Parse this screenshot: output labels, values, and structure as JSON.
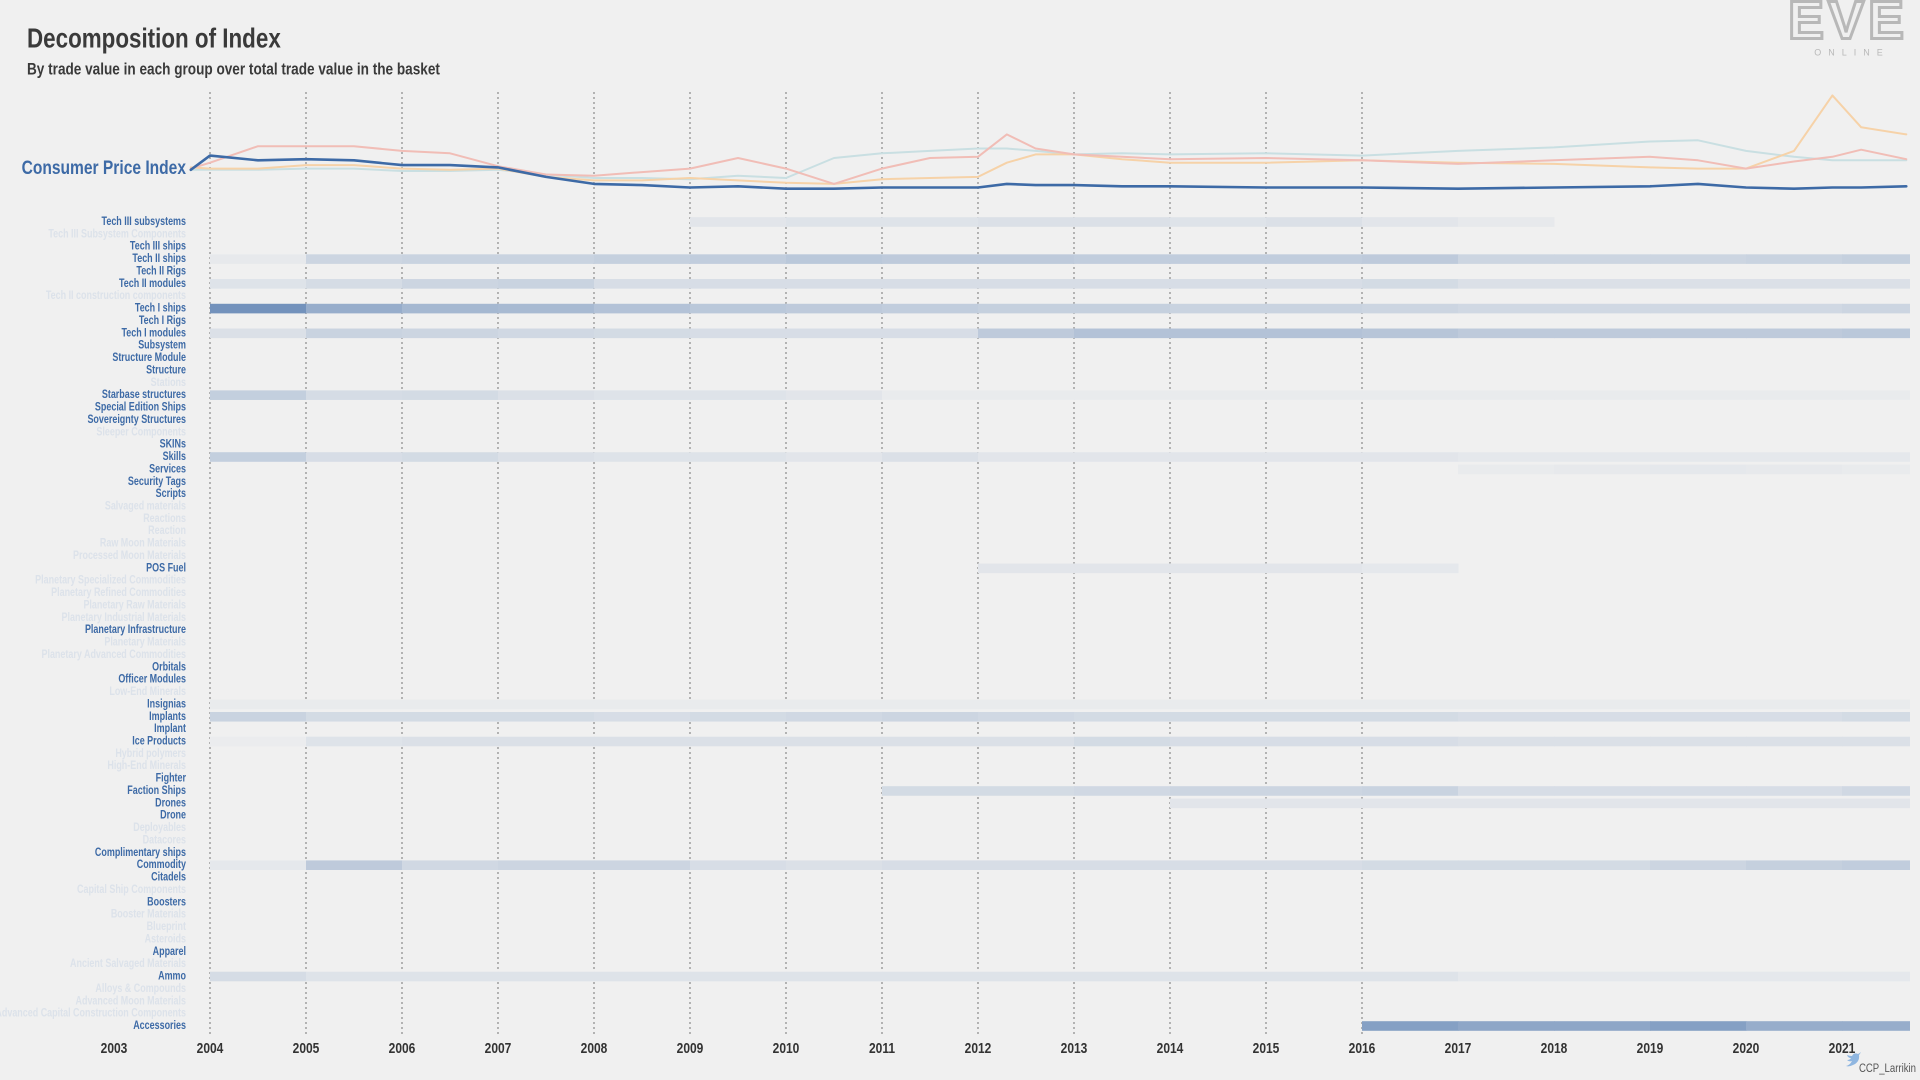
{
  "header": {
    "title": "Decomposition of Index",
    "subtitle": "By trade value in each group over total trade value in the basket",
    "logo": {
      "word": "EVE",
      "tagline": "ONLINE"
    },
    "credit": "CCP_Larrikin"
  },
  "chart_data": [
    {
      "type": "line",
      "label": "Consumer Price Index",
      "xlim": [
        2002.25,
        2021.75
      ],
      "ylim": [
        0.7,
        2.7
      ],
      "x": [
        2003.8,
        2004,
        2004.5,
        2005,
        2005.5,
        2006,
        2006.5,
        2007,
        2007.5,
        2008,
        2008.5,
        2009,
        2009.5,
        2010,
        2010.5,
        2011,
        2011.5,
        2012,
        2012.3,
        2012.6,
        2013,
        2013.5,
        2014,
        2015,
        2016,
        2017,
        2018,
        2019,
        2019.5,
        2020,
        2020.5,
        2020.9,
        2021.2,
        2021.67
      ],
      "series": [
        {
          "color": "#c9dfe2",
          "width": 2,
          "values": [
            1.28,
            1.28,
            1.28,
            1.3,
            1.3,
            1.26,
            1.26,
            1.28,
            1.2,
            1.14,
            1.14,
            1.12,
            1.18,
            1.14,
            1.48,
            1.56,
            1.6,
            1.64,
            1.64,
            1.6,
            1.54,
            1.56,
            1.54,
            1.56,
            1.52,
            1.6,
            1.66,
            1.76,
            1.78,
            1.6,
            1.5,
            1.44,
            1.44,
            1.44
          ]
        },
        {
          "color": "#f6d2a8",
          "width": 2,
          "values": [
            1.32,
            1.3,
            1.3,
            1.36,
            1.36,
            1.3,
            1.28,
            1.3,
            1.16,
            1.1,
            1.1,
            1.14,
            1.1,
            1.06,
            1.04,
            1.12,
            1.14,
            1.16,
            1.4,
            1.54,
            1.54,
            1.46,
            1.4,
            1.4,
            1.44,
            1.4,
            1.38,
            1.32,
            1.3,
            1.3,
            1.6,
            2.54,
            2.0,
            1.88
          ]
        },
        {
          "color": "#f1bdb6",
          "width": 2,
          "values": [
            1.3,
            1.4,
            1.68,
            1.68,
            1.68,
            1.6,
            1.56,
            1.34,
            1.2,
            1.18,
            1.24,
            1.3,
            1.48,
            1.3,
            1.04,
            1.3,
            1.48,
            1.5,
            1.88,
            1.64,
            1.54,
            1.5,
            1.46,
            1.48,
            1.44,
            1.38,
            1.44,
            1.5,
            1.44,
            1.3,
            1.42,
            1.5,
            1.62,
            1.46
          ]
        },
        {
          "name": "Consumer Price Index",
          "color": "#3d6aa6",
          "width": 2.6,
          "values": [
            1.28,
            1.52,
            1.44,
            1.46,
            1.44,
            1.36,
            1.36,
            1.32,
            1.16,
            1.04,
            1.02,
            0.98,
            1.0,
            0.96,
            0.96,
            0.98,
            0.98,
            0.98,
            1.04,
            1.02,
            1.02,
            1.0,
            1.0,
            0.98,
            0.98,
            0.96,
            0.98,
            1.0,
            1.04,
            0.98,
            0.96,
            0.98,
            0.98,
            1.0
          ]
        }
      ]
    },
    {
      "type": "heatmap",
      "xlim": [
        2002.25,
        2021.75
      ],
      "color": "#3d6aa6",
      "xticks": [
        2003,
        2004,
        2005,
        2006,
        2007,
        2008,
        2009,
        2010,
        2011,
        2012,
        2013,
        2014,
        2015,
        2016,
        2017,
        2018,
        2019,
        2020,
        2021
      ],
      "xgrid": [
        2004,
        2005,
        2006,
        2007,
        2008,
        2009,
        2010,
        2011,
        2012,
        2013,
        2014,
        2015,
        2016
      ],
      "x": [
        2004,
        2005,
        2006,
        2007,
        2008,
        2009,
        2010,
        2011,
        2012,
        2013,
        2014,
        2015,
        2016,
        2017,
        2018,
        2019,
        2020,
        2021
      ],
      "rows": [
        {
          "label": "Tech III subsystems",
          "emphasis": true,
          "values": [
            null,
            null,
            null,
            null,
            null,
            0.08,
            0.1,
            0.1,
            0.12,
            0.12,
            0.1,
            0.12,
            0.08,
            0.05,
            null,
            null,
            null,
            null
          ]
        },
        {
          "label": "Tech III Subsystem Components",
          "emphasis": false
        },
        {
          "label": "Tech III ships",
          "emphasis": true
        },
        {
          "label": "Tech II ships",
          "emphasis": true,
          "values": [
            0.05,
            0.2,
            0.22,
            0.22,
            0.24,
            0.26,
            0.3,
            0.28,
            0.28,
            0.26,
            0.26,
            0.26,
            0.28,
            0.2,
            0.2,
            0.2,
            0.22,
            0.24
          ]
        },
        {
          "label": "Tech II Rigs",
          "emphasis": true
        },
        {
          "label": "Tech II modules",
          "emphasis": true,
          "values": [
            0.1,
            0.15,
            0.2,
            0.22,
            0.14,
            0.14,
            0.14,
            0.14,
            0.14,
            0.14,
            0.14,
            0.14,
            0.16,
            0.12,
            0.12,
            0.12,
            0.12,
            0.12
          ]
        },
        {
          "label": "Tech II construction components",
          "emphasis": false
        },
        {
          "label": "Tech I ships",
          "emphasis": true,
          "values": [
            0.7,
            0.5,
            0.42,
            0.4,
            0.34,
            0.3,
            0.28,
            0.26,
            0.24,
            0.24,
            0.22,
            0.22,
            0.2,
            0.18,
            0.18,
            0.18,
            0.18,
            0.2
          ]
        },
        {
          "label": "Tech I Rigs",
          "emphasis": true
        },
        {
          "label": "Tech I modules",
          "emphasis": true,
          "values": [
            0.12,
            0.22,
            0.2,
            0.18,
            0.16,
            0.14,
            0.14,
            0.14,
            0.28,
            0.34,
            0.34,
            0.34,
            0.32,
            0.28,
            0.28,
            0.28,
            0.28,
            0.3
          ]
        },
        {
          "label": "Subsystem",
          "emphasis": true
        },
        {
          "label": "Structure Module",
          "emphasis": true
        },
        {
          "label": "Structure",
          "emphasis": true
        },
        {
          "label": "Stations",
          "emphasis": false
        },
        {
          "label": "Starbase structures",
          "emphasis": true,
          "values": [
            0.25,
            0.15,
            0.16,
            0.12,
            0.1,
            0.1,
            0.08,
            0.04,
            0.04,
            0.04,
            0.04,
            0.04,
            0.04,
            0.04,
            0.04,
            0.04,
            0.04,
            0.04
          ]
        },
        {
          "label": "Special Edition Ships",
          "emphasis": true
        },
        {
          "label": "Sovereignty Structures",
          "emphasis": true
        },
        {
          "label": "Sleeper Components",
          "emphasis": false
        },
        {
          "label": "SKINs",
          "emphasis": true
        },
        {
          "label": "Skills",
          "emphasis": true,
          "values": [
            0.25,
            0.14,
            0.16,
            0.12,
            0.1,
            0.1,
            0.08,
            0.12,
            0.08,
            0.08,
            0.08,
            0.08,
            0.08,
            0.06,
            0.06,
            0.06,
            0.06,
            0.06
          ]
        },
        {
          "label": "Services",
          "emphasis": true,
          "values": [
            null,
            null,
            null,
            null,
            null,
            null,
            null,
            null,
            null,
            null,
            null,
            null,
            null,
            0.04,
            0.05,
            0.06,
            0.05,
            0.04
          ]
        },
        {
          "label": "Security Tags",
          "emphasis": true
        },
        {
          "label": "Scripts",
          "emphasis": true
        },
        {
          "label": "Salvaged materials",
          "emphasis": false
        },
        {
          "label": "Reactions",
          "emphasis": false
        },
        {
          "label": "Reaction",
          "emphasis": false
        },
        {
          "label": "Raw Moon Materials",
          "emphasis": false
        },
        {
          "label": "Processed Moon Materials",
          "emphasis": false
        },
        {
          "label": "POS Fuel",
          "emphasis": true,
          "values": [
            null,
            null,
            null,
            null,
            null,
            null,
            null,
            null,
            0.08,
            0.08,
            0.08,
            0.08,
            0.06,
            null,
            null,
            null,
            null,
            null
          ]
        },
        {
          "label": "Planetary Specialized Commodities",
          "emphasis": false
        },
        {
          "label": "Planetary Refined Commodities",
          "emphasis": false
        },
        {
          "label": "Planetary Raw Materials",
          "emphasis": false
        },
        {
          "label": "Planetary Industrial Materials",
          "emphasis": false
        },
        {
          "label": "Planetary Infrastructure",
          "emphasis": true
        },
        {
          "label": "Planetary Materials",
          "emphasis": false
        },
        {
          "label": "Planetary Advanced Commodities",
          "emphasis": false
        },
        {
          "label": "Orbitals",
          "emphasis": true
        },
        {
          "label": "Officer Modules",
          "emphasis": true
        },
        {
          "label": "Low-End Minerals",
          "emphasis": false
        },
        {
          "label": "Insignias",
          "emphasis": true,
          "values": [
            0.04,
            0.04,
            0.04,
            0.04,
            0.04,
            0.04,
            0.04,
            0.04,
            0.04,
            0.04,
            0.04,
            0.04,
            0.04,
            0.04,
            0.04,
            0.04,
            0.04,
            0.04
          ]
        },
        {
          "label": "Implants",
          "emphasis": true,
          "values": [
            0.22,
            0.16,
            0.16,
            0.16,
            0.14,
            0.16,
            0.18,
            0.2,
            0.18,
            0.16,
            0.16,
            0.16,
            0.16,
            0.14,
            0.14,
            0.14,
            0.14,
            0.16
          ]
        },
        {
          "label": "Implant",
          "emphasis": true
        },
        {
          "label": "Ice Products",
          "emphasis": true,
          "values": [
            0.03,
            0.1,
            0.12,
            0.12,
            0.12,
            0.12,
            0.12,
            0.12,
            0.12,
            0.16,
            0.14,
            0.14,
            0.14,
            0.12,
            0.12,
            0.12,
            0.12,
            0.12
          ]
        },
        {
          "label": "Hybrid polymers",
          "emphasis": false
        },
        {
          "label": "High-End Minerals",
          "emphasis": false
        },
        {
          "label": "Fighter",
          "emphasis": true
        },
        {
          "label": "Faction Ships",
          "emphasis": true,
          "values": [
            null,
            null,
            null,
            null,
            null,
            null,
            null,
            0.16,
            0.16,
            0.18,
            0.2,
            0.2,
            0.22,
            0.14,
            0.14,
            0.14,
            0.14,
            0.18
          ]
        },
        {
          "label": "Drones",
          "emphasis": true,
          "values": [
            null,
            null,
            null,
            null,
            null,
            null,
            null,
            null,
            null,
            null,
            0.08,
            0.08,
            0.08,
            0.08,
            0.08,
            0.08,
            0.08,
            0.08
          ]
        },
        {
          "label": "Drone",
          "emphasis": true
        },
        {
          "label": "Deployables",
          "emphasis": false
        },
        {
          "label": "Datacores",
          "emphasis": false
        },
        {
          "label": "Complimentary ships",
          "emphasis": true
        },
        {
          "label": "Commodity",
          "emphasis": true,
          "values": [
            0.06,
            0.28,
            0.18,
            0.2,
            0.2,
            0.14,
            0.12,
            0.14,
            0.14,
            0.14,
            0.14,
            0.14,
            0.16,
            0.16,
            0.16,
            0.2,
            0.24,
            0.26
          ]
        },
        {
          "label": "Citadels",
          "emphasis": true
        },
        {
          "label": "Capital Ship Components",
          "emphasis": false
        },
        {
          "label": "Boosters",
          "emphasis": true
        },
        {
          "label": "Booster Materials",
          "emphasis": false
        },
        {
          "label": "Blueprint",
          "emphasis": false
        },
        {
          "label": "Asteroids",
          "emphasis": false
        },
        {
          "label": "Apparel",
          "emphasis": true
        },
        {
          "label": "Ancient Salvaged Materials",
          "emphasis": false
        },
        {
          "label": "Ammo",
          "emphasis": true,
          "values": [
            0.15,
            0.1,
            0.1,
            0.1,
            0.1,
            0.1,
            0.1,
            0.1,
            0.1,
            0.1,
            0.1,
            0.1,
            0.1,
            0.06,
            0.06,
            0.06,
            0.06,
            0.06
          ]
        },
        {
          "label": "Alloys & Compounds",
          "emphasis": false
        },
        {
          "label": "Advanced Moon Materials",
          "emphasis": false
        },
        {
          "label": "Advanced Capital Construction Components",
          "emphasis": false
        },
        {
          "label": "Accessories",
          "emphasis": true,
          "values": [
            null,
            null,
            null,
            null,
            null,
            null,
            null,
            null,
            null,
            null,
            null,
            null,
            0.6,
            0.55,
            0.55,
            0.6,
            0.5,
            0.5
          ]
        }
      ]
    }
  ]
}
